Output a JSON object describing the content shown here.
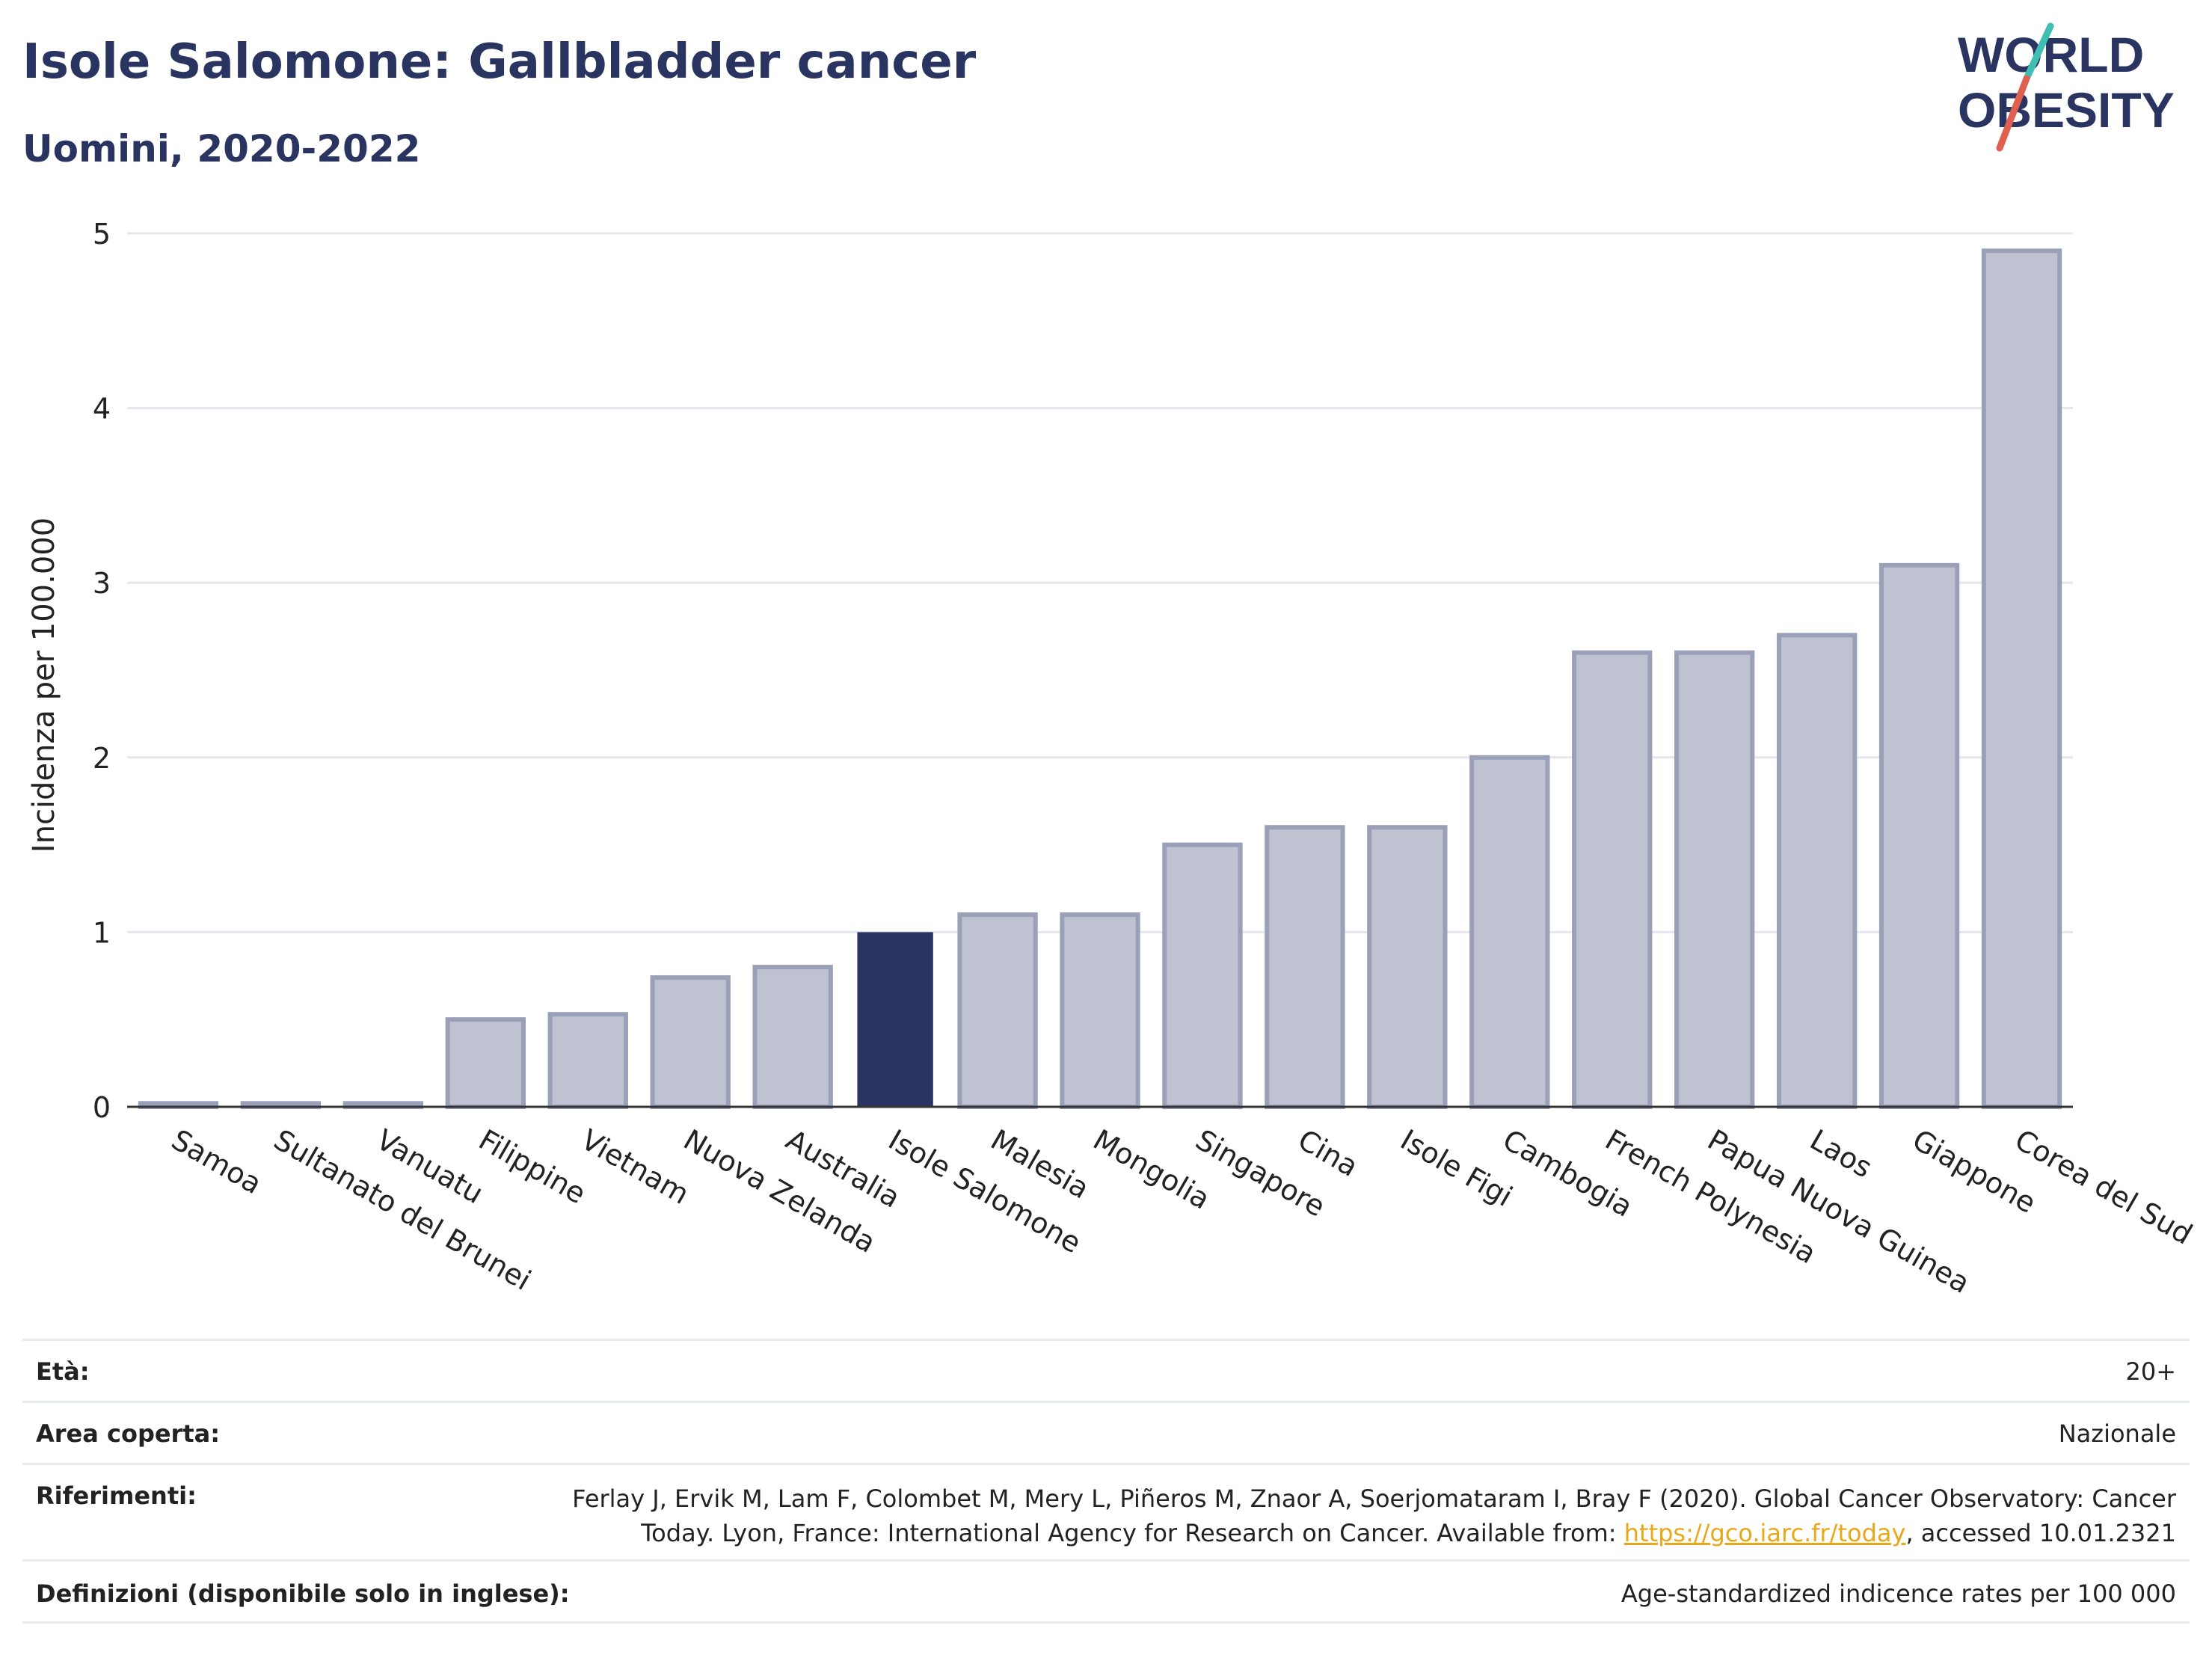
{
  "header": {
    "title": "Isole Salomone: Gallbladder cancer",
    "subtitle": "Uomini, 2020-2022"
  },
  "logo": {
    "line1": "WORLD",
    "line2": "OBESITY",
    "colors": {
      "text": "#2a3461",
      "accent_teal": "#3fbfb4",
      "accent_red": "#e0604f"
    }
  },
  "chart_data": {
    "type": "bar",
    "ylabel": "Incidenza per 100.000",
    "ylim": [
      0,
      5
    ],
    "yticks": [
      0,
      1,
      2,
      3,
      4,
      5
    ],
    "grid": true,
    "highlight": "Isole Salomone",
    "colors": {
      "default": "#bfc2d0",
      "default_edge": "#9aa0b8",
      "highlight": "#2a3461"
    },
    "categories": [
      "Samoa",
      "Sultanato del Brunei",
      "Vanuatu",
      "Filippine",
      "Vietnam",
      "Nuova Zelanda",
      "Australia",
      "Isole Salomone",
      "Malesia",
      "Mongolia",
      "Singapore",
      "Cina",
      "Isole Figi",
      "Cambogia",
      "French Polynesia",
      "Papua Nuova Guinea",
      "Laos",
      "Giappone",
      "Corea del Sud"
    ],
    "values": [
      0.02,
      0.02,
      0.02,
      0.5,
      0.53,
      0.74,
      0.8,
      1.0,
      1.1,
      1.1,
      1.5,
      1.6,
      1.6,
      2.0,
      2.6,
      2.6,
      2.7,
      3.1,
      4.9
    ]
  },
  "info": {
    "eta_label": "Età:",
    "eta_value": "20+",
    "area_label": "Area coperta:",
    "area_value": "Nazionale",
    "rif_label": "Riferimenti:",
    "rif_line1": "Ferlay J, Ervik M, Lam F, Colombet M, Mery L, Piñeros M, Znaor A, Soerjomataram I, Bray F (2020). Global Cancer Observatory: Cancer",
    "rif_line2_pre": "Today. Lyon, France: International Agency for Research on Cancer. Available from: ",
    "rif_link": "https://gco.iarc.fr/today",
    "rif_line2_post": ", accessed 10.01.2321",
    "def_label": "Definizioni (disponibile solo in inglese):",
    "def_value": "Age-standardized indicence rates per 100 000"
  }
}
